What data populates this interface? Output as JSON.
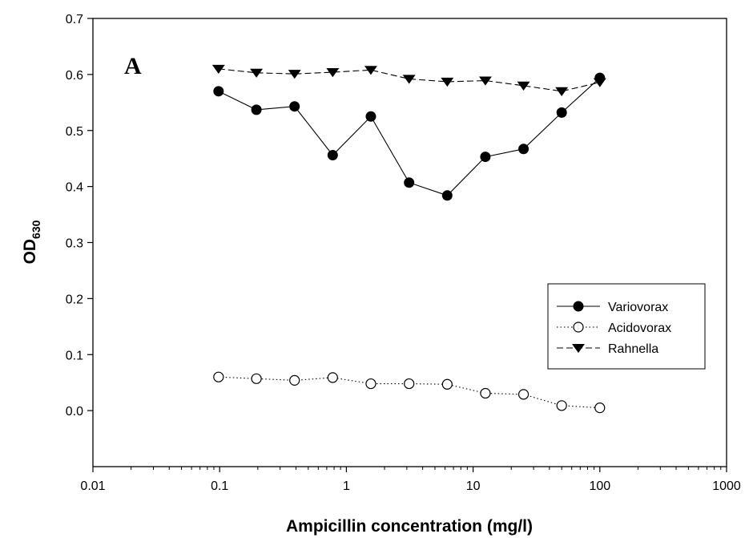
{
  "chart_data": {
    "type": "line",
    "panel_label": "A",
    "xlabel": "Ampicillin concentration (mg/l)",
    "ylabel": {
      "main": "OD",
      "subscript": "630"
    },
    "x_scale": "log",
    "xlim": [
      0.01,
      1000
    ],
    "ylim": [
      -0.1,
      0.7
    ],
    "x_ticks": [
      "0.01",
      "0.1",
      "1",
      "10",
      "100",
      "1000"
    ],
    "y_ticks": [
      "0.0",
      "0.1",
      "0.2",
      "0.3",
      "0.4",
      "0.5",
      "0.6",
      "0.7"
    ],
    "grid": false,
    "legend_position": "right",
    "x": [
      0.098,
      0.195,
      0.39,
      0.78,
      1.56,
      3.125,
      6.25,
      12.5,
      25,
      50,
      100
    ],
    "series": [
      {
        "name": "Variovorax",
        "marker": "filled-circle",
        "line": "solid",
        "values": [
          0.57,
          0.537,
          0.543,
          0.456,
          0.525,
          0.407,
          0.384,
          0.453,
          0.467,
          0.532,
          0.594
        ]
      },
      {
        "name": "Acidovorax",
        "marker": "open-circle",
        "line": "dotted",
        "values": [
          0.06,
          0.057,
          0.054,
          0.059,
          0.048,
          0.048,
          0.047,
          0.031,
          0.029,
          0.009,
          0.005
        ]
      },
      {
        "name": "Rahnella",
        "marker": "filled-triangle-down",
        "line": "dashed",
        "values": [
          0.61,
          0.603,
          0.601,
          0.604,
          0.608,
          0.592,
          0.587,
          0.589,
          0.58,
          0.57,
          0.586
        ]
      }
    ]
  }
}
